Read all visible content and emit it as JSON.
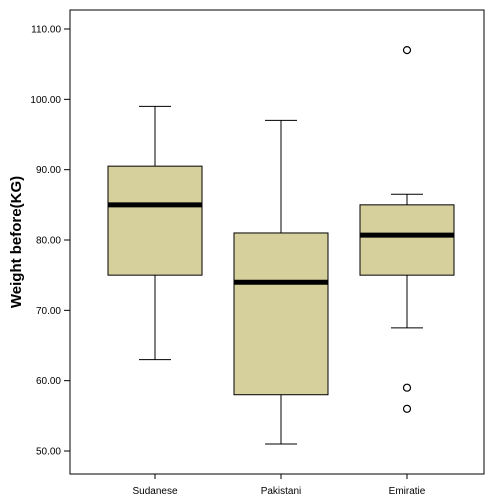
{
  "chart_data": {
    "type": "boxplot",
    "ylabel": "Weight before(KG)",
    "xlabel": "",
    "ylim": [
      49,
      115
    ],
    "y_ticks": [
      "50.00",
      "60.00",
      "70.00",
      "80.00",
      "90.00",
      "100.00",
      "110.00"
    ],
    "y_tick_values": [
      50,
      60,
      70,
      80,
      90,
      100,
      110
    ],
    "categories": [
      "Sudanese",
      "Pakistani",
      "Emiratie"
    ],
    "box_color": "#d6d09c",
    "boxes": [
      {
        "category": "Sudanese",
        "whisker_low": 63,
        "q1": 75,
        "median": 85,
        "q3": 90.5,
        "whisker_high": 99,
        "outliers": []
      },
      {
        "category": "Pakistani",
        "whisker_low": 51,
        "q1": 58,
        "median": 74,
        "q3": 81,
        "whisker_high": 97,
        "outliers": []
      },
      {
        "category": "Emiratie",
        "whisker_low": 67.5,
        "q1": 75,
        "median": 80.7,
        "q3": 85,
        "whisker_high": 86.5,
        "outliers": [
          107,
          59,
          56
        ]
      }
    ],
    "grid": false
  }
}
